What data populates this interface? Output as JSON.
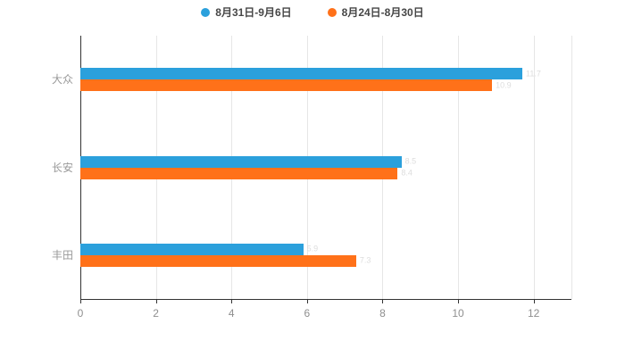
{
  "chart_data": {
    "type": "bar",
    "orientation": "horizontal",
    "title": "",
    "categories": [
      "大众",
      "长安",
      "丰田"
    ],
    "series": [
      {
        "name": "8月31日-9月6日",
        "color": "#2BA0DC",
        "values": [
          11.7,
          8.5,
          5.9
        ]
      },
      {
        "name": "8月24日-8月30日",
        "color": "#FF7119",
        "values": [
          10.9,
          8.4,
          7.3
        ]
      }
    ],
    "xlabel": "",
    "ylabel": "",
    "xticks": [
      0,
      2,
      4,
      6,
      8,
      10,
      12
    ],
    "xlim": [
      0,
      13
    ],
    "grid": true,
    "legend_position": "top-center",
    "value_labels_visible": true
  },
  "colors": {
    "series_blue": "#2BA0DC",
    "series_orange": "#FF7119",
    "axis_line": "#333333",
    "grid_line": "#e6e6e6",
    "tick_label": "#8f8f8f",
    "category_label": "#999999",
    "legend_text": "#464646",
    "value_label": "#dddddd",
    "background": "#ffffff"
  }
}
